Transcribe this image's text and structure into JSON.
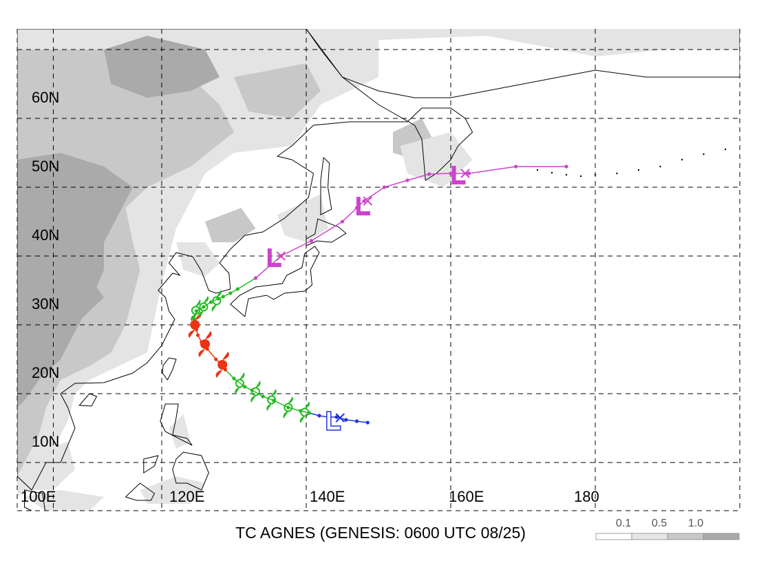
{
  "title": "TC AGNES (GENESIS: 0600 UTC 08/25)",
  "map": {
    "lon_range": [
      100,
      200
    ],
    "lat_range": [
      3,
      73
    ],
    "lat_labels": [
      "10N",
      "20N",
      "30N",
      "40N",
      "50N",
      "60N"
    ],
    "lon_labels": [
      "100E",
      "120E",
      "140E",
      "160E",
      "180"
    ],
    "lat_grid": [
      10,
      20,
      30,
      40,
      50,
      60,
      70
    ],
    "lon_grid": [
      100,
      105,
      120,
      140,
      160,
      180,
      200
    ]
  },
  "legend": {
    "labels": [
      "0.1",
      "0.5",
      "1.0"
    ],
    "colors": [
      "#ffffff",
      "#e6e6e6",
      "#c8c8c8",
      "#a9a9a9"
    ]
  },
  "colors": {
    "shade_light": "#e4e4e4",
    "shade_mid": "#c8c8c8",
    "shade_dark": "#aaaaaa",
    "tropical_depression": "#2233dd",
    "tropical_storm": "#22bb22",
    "typhoon": "#ee3311",
    "extratropical": "#cc44cc"
  },
  "track": {
    "segments": [
      {
        "stage": "low",
        "color": "#2233dd",
        "points": [
          [
            148.5,
            15.8
          ],
          [
            147.0,
            16.0
          ],
          [
            145.5,
            16.2
          ],
          [
            144.2,
            16.6
          ],
          [
            143.0,
            16.6
          ],
          [
            141.8,
            16.8
          ],
          [
            140.4,
            17.2
          ]
        ]
      },
      {
        "stage": "tropical storm",
        "color": "#22bb22",
        "points": [
          [
            140.4,
            17.2
          ],
          [
            139.2,
            17.5
          ],
          [
            137.5,
            18.0
          ],
          [
            135.5,
            19.0
          ],
          [
            134.0,
            19.6
          ],
          [
            132.5,
            20.5
          ],
          [
            131.5,
            21.0
          ],
          [
            130.0,
            22.2
          ],
          [
            128.8,
            23.5
          ]
        ]
      },
      {
        "stage": "typhoon",
        "color": "#ee3311",
        "points": [
          [
            128.8,
            23.5
          ],
          [
            128.0,
            24.5
          ],
          [
            127.5,
            25.0
          ],
          [
            126.3,
            26.5
          ],
          [
            125.5,
            27.5
          ],
          [
            125.0,
            28.5
          ],
          [
            124.8,
            29.3
          ],
          [
            124.6,
            30.0
          ],
          [
            124.5,
            30.8
          ]
        ]
      },
      {
        "stage": "tropical storm",
        "color": "#22bb22",
        "points": [
          [
            124.5,
            30.8
          ],
          [
            124.8,
            32.0
          ],
          [
            125.8,
            32.6
          ],
          [
            126.8,
            33.3
          ],
          [
            127.8,
            33.8
          ],
          [
            128.5,
            34.1
          ],
          [
            129.5,
            34.6
          ],
          [
            130.5,
            35.2
          ],
          [
            133.0,
            36.8
          ]
        ]
      },
      {
        "stage": "extratropical",
        "color": "#cc44cc",
        "points": [
          [
            133.0,
            36.8
          ],
          [
            136.5,
            40.0
          ],
          [
            140.7,
            42.2
          ],
          [
            145.0,
            45.0
          ],
          [
            147.0,
            47.0
          ],
          [
            148.0,
            48.0
          ],
          [
            150.8,
            50.0
          ],
          [
            154.0,
            51.0
          ],
          [
            157.0,
            51.9
          ],
          [
            160.0,
            52.0
          ],
          [
            162.5,
            52.0
          ],
          [
            169.0,
            53.0
          ],
          [
            176.0,
            53.0
          ]
        ]
      }
    ],
    "markers": [
      {
        "type": "L",
        "lon": 143.7,
        "lat": 15.8,
        "color": "#2233dd",
        "outline": true
      },
      {
        "type": "X",
        "lon": 144.7,
        "lat": 16.5,
        "color": "#2233dd"
      },
      {
        "type": "TS",
        "lon": 139.8,
        "lat": 17.3,
        "color": "#22bb22"
      },
      {
        "type": "TS",
        "lon": 137.5,
        "lat": 18.0,
        "color": "#22bb22"
      },
      {
        "type": "TS",
        "lon": 135.2,
        "lat": 19.1,
        "color": "#22bb22"
      },
      {
        "type": "TS",
        "lon": 133.0,
        "lat": 20.3,
        "color": "#22bb22"
      },
      {
        "type": "TS",
        "lon": 130.8,
        "lat": 21.5,
        "color": "#22bb22"
      },
      {
        "type": "TY",
        "lon": 128.4,
        "lat": 24.2,
        "color": "#ee3311"
      },
      {
        "type": "TY",
        "lon": 126.0,
        "lat": 27.2,
        "color": "#ee3311"
      },
      {
        "type": "TY",
        "lon": 124.6,
        "lat": 30.0,
        "color": "#ee3311"
      },
      {
        "type": "TS",
        "lon": 124.7,
        "lat": 32.1,
        "color": "#22bb22"
      },
      {
        "type": "TS",
        "lon": 125.8,
        "lat": 32.6,
        "color": "#22bb22"
      },
      {
        "type": "TS",
        "lon": 127.6,
        "lat": 33.5,
        "color": "#22bb22"
      },
      {
        "type": "L",
        "lon": 135.5,
        "lat": 39.5,
        "color": "#cc44cc"
      },
      {
        "type": "X",
        "lon": 136.5,
        "lat": 40.0,
        "color": "#cc44cc"
      },
      {
        "type": "L",
        "lon": 147.8,
        "lat": 47.0,
        "color": "#cc44cc"
      },
      {
        "type": "X",
        "lon": 148.5,
        "lat": 48.0,
        "color": "#cc44cc"
      },
      {
        "type": "L",
        "lon": 161.0,
        "lat": 51.5,
        "color": "#cc44cc"
      },
      {
        "type": "X",
        "lon": 162.0,
        "lat": 52.0,
        "color": "#cc44cc"
      }
    ]
  },
  "land": [
    {
      "name": "asia-mainland",
      "points": [
        [
          100,
          73
        ],
        [
          140,
          73
        ],
        [
          142,
          70
        ],
        [
          145,
          66
        ],
        [
          150,
          64
        ],
        [
          155,
          63
        ],
        [
          160,
          63
        ],
        [
          165,
          64
        ],
        [
          170,
          65
        ],
        [
          175,
          66
        ],
        [
          180,
          67
        ],
        [
          187,
          66
        ],
        [
          200,
          66
        ],
        [
          200,
          73
        ]
      ]
    },
    {
      "name": "asia-east-coast",
      "points": [
        [
          100,
          73
        ],
        [
          100,
          8
        ],
        [
          102,
          6
        ],
        [
          104,
          10
        ],
        [
          106,
          10
        ],
        [
          108,
          15
        ],
        [
          107,
          18
        ],
        [
          106,
          20
        ],
        [
          108,
          21.5
        ],
        [
          112,
          21.6
        ],
        [
          116,
          23
        ],
        [
          118,
          24.5
        ],
        [
          120,
          27
        ],
        [
          121.8,
          30.8
        ],
        [
          121,
          32
        ],
        [
          120.5,
          34
        ],
        [
          119.5,
          35
        ],
        [
          121.5,
          37.5
        ],
        [
          122.5,
          37.2
        ],
        [
          121,
          39
        ],
        [
          122,
          40.5
        ],
        [
          124.3,
          39.9
        ],
        [
          125.5,
          37.8
        ],
        [
          126.5,
          35
        ],
        [
          127.5,
          34.6
        ],
        [
          129.5,
          35.2
        ],
        [
          129.3,
          37.5
        ],
        [
          128,
          39
        ],
        [
          129.5,
          41
        ],
        [
          131.5,
          43
        ],
        [
          134,
          43.5
        ],
        [
          137,
          45.5
        ],
        [
          140.3,
          48.5
        ],
        [
          141,
          52
        ],
        [
          138,
          54
        ],
        [
          136,
          54.5
        ],
        [
          138,
          56
        ],
        [
          141,
          59
        ],
        [
          146,
          59.5
        ],
        [
          150,
          59.5
        ],
        [
          154,
          59.5
        ],
        [
          156,
          61.5
        ],
        [
          160,
          61.5
        ],
        [
          162,
          60
        ],
        [
          163,
          58
        ],
        [
          161,
          56
        ],
        [
          160,
          54
        ],
        [
          158,
          52
        ],
        [
          156.5,
          51
        ],
        [
          156,
          57
        ],
        [
          155,
          59
        ],
        [
          150,
          62
        ],
        [
          145,
          66
        ],
        [
          140,
          73
        ]
      ]
    }
  ]
}
